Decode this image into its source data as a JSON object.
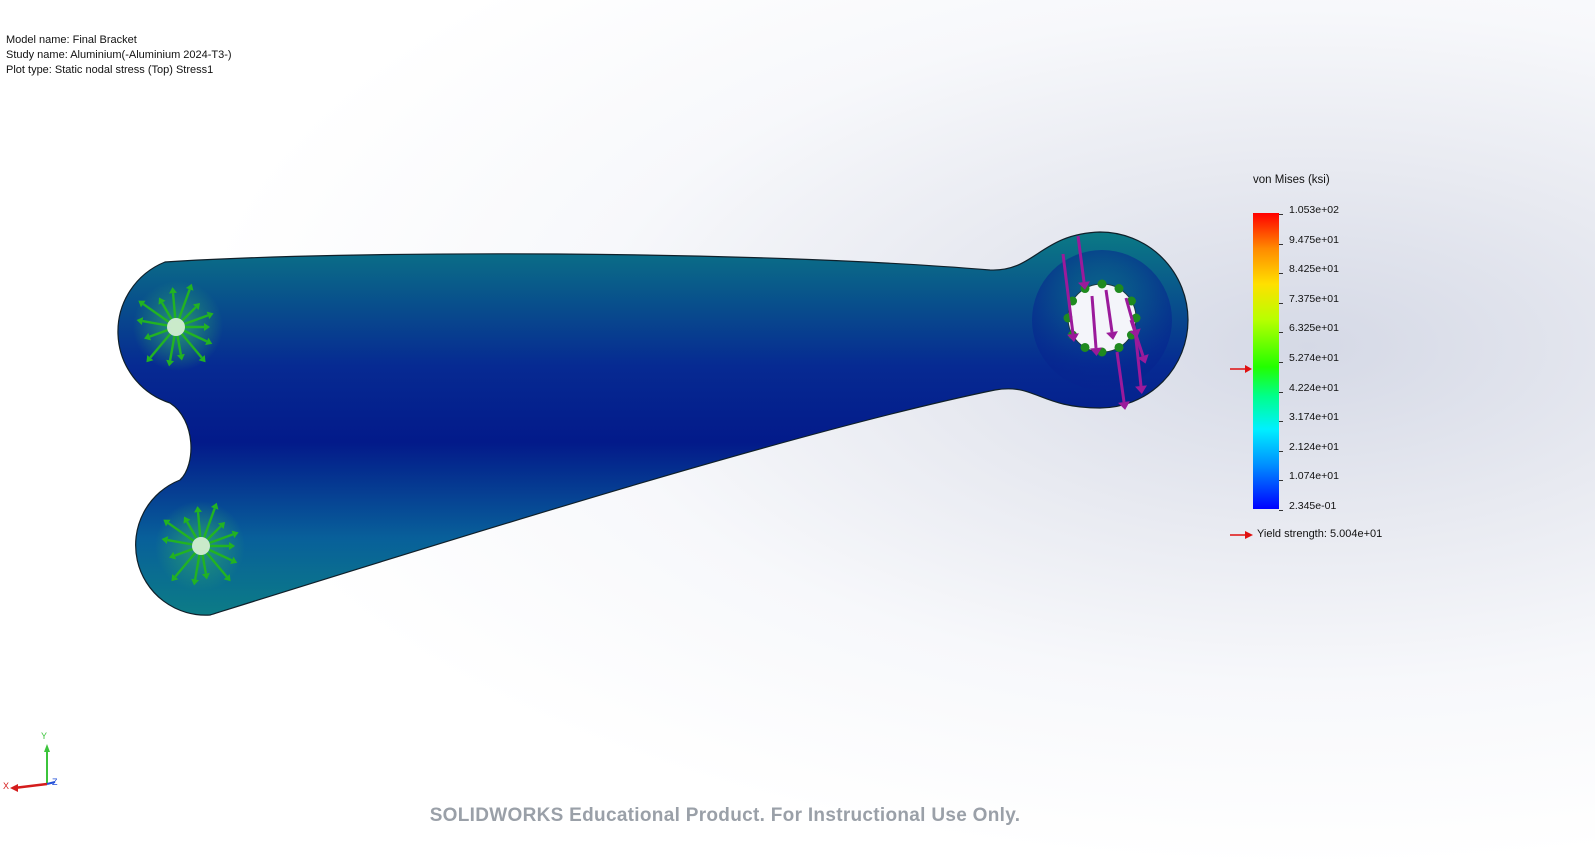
{
  "info": {
    "model_name": "Model name: Final Bracket",
    "study_name": "Study name: Aluminium(-Aluminium 2024-T3-)",
    "plot_type": "Plot type: Static nodal stress (Top) Stress1"
  },
  "legend": {
    "title": "von Mises (ksi)",
    "ticks": [
      "1.053e+02",
      "9.475e+01",
      "8.425e+01",
      "7.375e+01",
      "6.325e+01",
      "5.274e+01",
      "4.224e+01",
      "3.174e+01",
      "2.124e+01",
      "1.074e+01",
      "2.345e-01"
    ],
    "yield_label": "Yield strength: 5.004e+01",
    "marker_color": "#e01010"
  },
  "triad": {
    "x": "X",
    "y": "Y",
    "z": "Z"
  },
  "watermark": "SOLIDWORKS Educational Product. For Instructional Use Only.",
  "colors": {
    "fixture": "#22b322",
    "load": "#9b1a9b",
    "stress_low": "#051a8a",
    "stress_mid": "#0a7d88"
  }
}
